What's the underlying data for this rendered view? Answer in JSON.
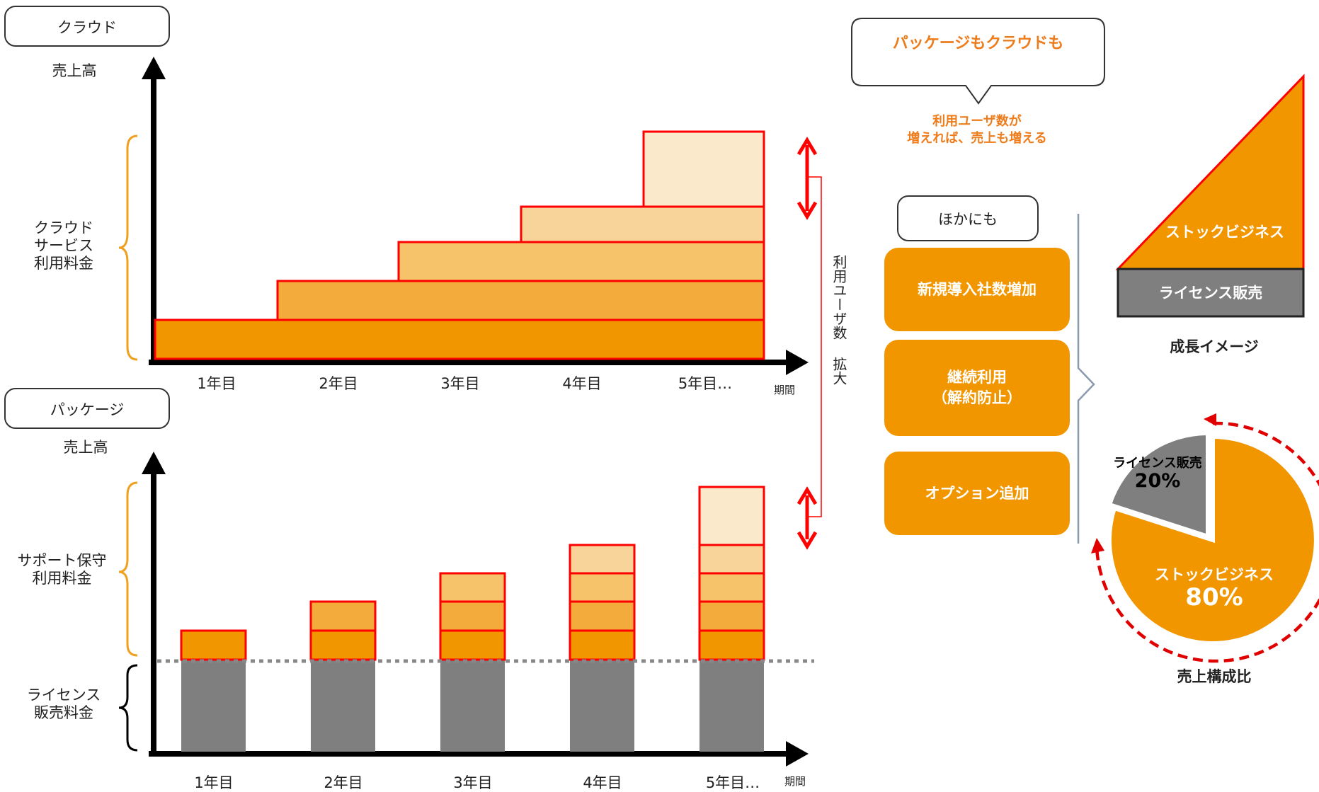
{
  "cloud": {
    "tab": "クラウド",
    "y_label": "売上高",
    "brace_label": "クラウド\nサービス\n利用料金",
    "x_ticks": [
      "1年目",
      "2年目",
      "3年目",
      "4年目",
      "5年目…"
    ],
    "x_unit": "期間"
  },
  "package": {
    "tab": "パッケージ",
    "y_label": "売上高",
    "brace_upper_label": "サポート保守\n利用料金",
    "brace_lower_label": "ライセンス\n販売料金",
    "x_ticks": [
      "1年目",
      "2年目",
      "3年目",
      "4年目",
      "5年目…"
    ],
    "x_unit": "期間"
  },
  "connector_label": "利用ユーザ数 拡大",
  "callout": {
    "title": "パッケージもクラウドも",
    "note": "利用ユーザ数が\n増えれば、売上も増える"
  },
  "others": {
    "tab": "ほかにも",
    "items": [
      "新規導入社数増加",
      "継続利用\n（解約防止）",
      "オプション追加"
    ]
  },
  "growth": {
    "triangle_label": "ストックビジネス",
    "base_label": "ライセンス販売",
    "caption": "成長イメージ"
  },
  "pie": {
    "caption": "売上構成比",
    "slices": [
      {
        "label": "ストックビジネス",
        "value": 80,
        "display": "80%",
        "color": "#f29600"
      },
      {
        "label": "ライセンス販売",
        "value": 20,
        "display": "20%",
        "color": "#7f7f7f"
      }
    ]
  },
  "colors": {
    "accent_orange": "#f29600",
    "outline_red": "#ff0000",
    "license_gray": "#7f7f7f",
    "brace_orange": "#f0a020"
  }
}
